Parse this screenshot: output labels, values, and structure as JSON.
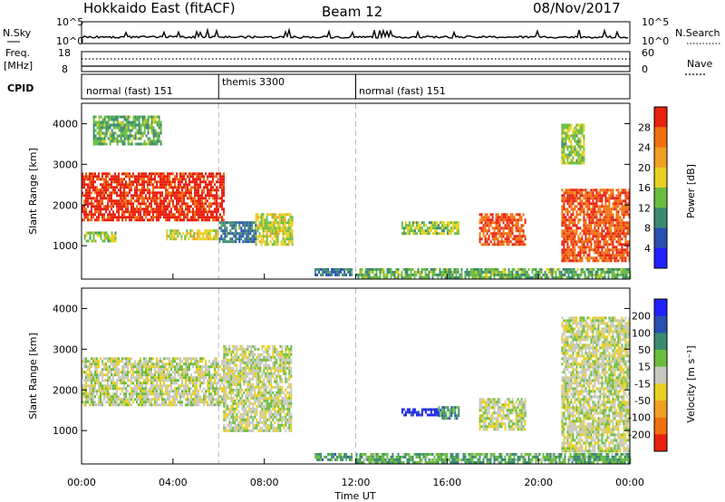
{
  "header": {
    "title": "Hokkaido East (fitACF)",
    "beam": "Beam 12",
    "date": "08/Nov/2017"
  },
  "top_panels": {
    "nsky_label": "N.Sky",
    "nsky_ticks": [
      "10^5",
      "10^0"
    ],
    "nsky_right_ticks": [
      "10^5",
      "10^0"
    ],
    "nsearch_label": "N.Search",
    "freq_label_line1": "Freq.",
    "freq_label_line2": "[MHz]",
    "freq_ticks": [
      "18",
      "8"
    ],
    "nave_ticks": [
      "60",
      "0"
    ],
    "nave_label": "Nave",
    "cpid_label": "CPID",
    "cpid_modes": [
      {
        "label": "normal (fast) 151",
        "start_hour": 0,
        "end_hour": 6
      },
      {
        "label": "themis 3300",
        "start_hour": 6,
        "end_hour": 12
      },
      {
        "label": "normal (fast) 151",
        "start_hour": 12,
        "end_hour": 24
      }
    ]
  },
  "axes": {
    "ylabel": "Slant Range [km]",
    "xlabel": "Time UT",
    "x_ticks": [
      "00:00",
      "04:00",
      "08:00",
      "12:00",
      "16:00",
      "20:00",
      "00:00"
    ]
  },
  "colorbars": {
    "power": {
      "label": "Power [dB]",
      "ticks": [
        "28",
        "24",
        "20",
        "16",
        "12",
        "8",
        "4"
      ]
    },
    "velocity": {
      "label": "Velocity [m s⁻¹]",
      "ticks": [
        "200",
        "100",
        "50",
        "15",
        "-15",
        "-50",
        "-100",
        "-200"
      ]
    }
  },
  "chart_data": [
    {
      "type": "heatmap",
      "name": "Power",
      "xlabel": "Time UT",
      "ylabel": "Slant Range [km]",
      "xlim_hours": [
        0,
        24
      ],
      "ylim_km": [
        180,
        4500
      ],
      "y_ticks": [
        1000,
        2000,
        3000,
        4000
      ],
      "colorscale": "Power [dB]",
      "colorscale_range": [
        0,
        30
      ],
      "colors": [
        "#2020ff",
        "#2a50b0",
        "#3a8a70",
        "#6cbc40",
        "#e8d020",
        "#f0a020",
        "#f07010",
        "#e82010"
      ],
      "regions": [
        {
          "t": [
            0.0,
            6.2
          ],
          "r": [
            1600,
            2800
          ],
          "value": 28
        },
        {
          "t": [
            0.1,
            1.5
          ],
          "r": [
            1100,
            1350
          ],
          "value": 14
        },
        {
          "t": [
            3.7,
            6.0
          ],
          "r": [
            1150,
            1400
          ],
          "value": 16
        },
        {
          "t": [
            0.5,
            3.5
          ],
          "r": [
            3500,
            4200
          ],
          "value": 12
        },
        {
          "t": [
            6.0,
            7.6
          ],
          "r": [
            1100,
            1600
          ],
          "value": 8
        },
        {
          "t": [
            7.6,
            9.2
          ],
          "r": [
            1000,
            1800
          ],
          "value": 16
        },
        {
          "t": [
            10.2,
            11.8
          ],
          "r": [
            250,
            450
          ],
          "value": 8
        },
        {
          "t": [
            14.0,
            16.5
          ],
          "r": [
            1300,
            1600
          ],
          "value": 14
        },
        {
          "t": [
            17.4,
            19.4
          ],
          "r": [
            1000,
            1800
          ],
          "value": 26
        },
        {
          "t": [
            21.0,
            24.0
          ],
          "r": [
            600,
            2400
          ],
          "value": 26
        },
        {
          "t": [
            21.0,
            22.0
          ],
          "r": [
            3000,
            4000
          ],
          "value": 14
        },
        {
          "t": [
            12.0,
            24.0
          ],
          "r": [
            200,
            450
          ],
          "value": 12
        }
      ]
    },
    {
      "type": "heatmap",
      "name": "Velocity",
      "xlabel": "Time UT",
      "ylabel": "Slant Range [km]",
      "xlim_hours": [
        0,
        24
      ],
      "ylim_km": [
        180,
        4500
      ],
      "y_ticks": [
        1000,
        2000,
        3000,
        4000
      ],
      "colorscale": "Velocity [m s⁻¹]",
      "colorscale_range": [
        -200,
        200
      ],
      "colors": [
        "#e82010",
        "#f07010",
        "#f0a020",
        "#e8d020",
        "#c8c8c0",
        "#6cbc40",
        "#3a8a70",
        "#2a50b0",
        "#2020ff"
      ],
      "regions": [
        {
          "t": [
            0.0,
            6.2
          ],
          "r": [
            1600,
            2800
          ],
          "value": 0
        },
        {
          "t": [
            6.2,
            9.2
          ],
          "r": [
            1000,
            3100
          ],
          "value": 0
        },
        {
          "t": [
            10.2,
            11.8
          ],
          "r": [
            250,
            450
          ],
          "value": 80
        },
        {
          "t": [
            14.0,
            15.6
          ],
          "r": [
            1350,
            1550
          ],
          "value": 180
        },
        {
          "t": [
            15.6,
            16.5
          ],
          "r": [
            1300,
            1600
          ],
          "value": 80
        },
        {
          "t": [
            17.4,
            19.4
          ],
          "r": [
            1000,
            1800
          ],
          "value": 0
        },
        {
          "t": [
            21.0,
            24.0
          ],
          "r": [
            500,
            3800
          ],
          "value": 0
        },
        {
          "t": [
            12.0,
            24.0
          ],
          "r": [
            200,
            450
          ],
          "value": 60
        }
      ]
    }
  ]
}
